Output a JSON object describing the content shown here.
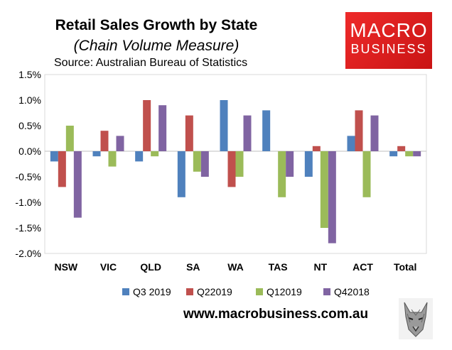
{
  "header": {
    "title": "Retail Sales Growth by State",
    "subtitle": "(Chain Volume Measure)",
    "source": "Source: Australian Bureau of Statistics"
  },
  "logo": {
    "line1": "MACRO",
    "line2": "BUSINESS"
  },
  "footer": {
    "website": "www.macrobusiness.com.au"
  },
  "colors": {
    "logo_red": "#e41e26"
  },
  "chart_data": {
    "type": "bar",
    "categories": [
      "NSW",
      "VIC",
      "QLD",
      "SA",
      "WA",
      "TAS",
      "NT",
      "ACT",
      "Total"
    ],
    "series": [
      {
        "name": "Q3 2019",
        "color": "#4f81bd",
        "values": [
          -0.2,
          -0.1,
          -0.2,
          -0.9,
          1.0,
          0.8,
          -0.5,
          0.3,
          -0.1
        ]
      },
      {
        "name": "Q22019",
        "color": "#c0504d",
        "values": [
          -0.7,
          0.4,
          1.0,
          0.7,
          -0.7,
          0.0,
          0.1,
          0.8,
          0.1
        ]
      },
      {
        "name": "Q12019",
        "color": "#9bbb59",
        "values": [
          0.5,
          -0.3,
          -0.1,
          -0.4,
          -0.5,
          -0.9,
          -1.5,
          -0.9,
          -0.1
        ]
      },
      {
        "name": "Q42018",
        "color": "#8064a2",
        "values": [
          -1.3,
          0.3,
          0.9,
          -0.5,
          0.7,
          -0.5,
          -1.8,
          0.7,
          -0.1
        ]
      }
    ],
    "yticks": [
      "1.5%",
      "1.0%",
      "0.5%",
      "0.0%",
      "-0.5%",
      "-1.0%",
      "-1.5%",
      "-2.0%"
    ],
    "ylim": [
      -2.0,
      1.5
    ],
    "grid": false,
    "legend_position": "bottom"
  }
}
